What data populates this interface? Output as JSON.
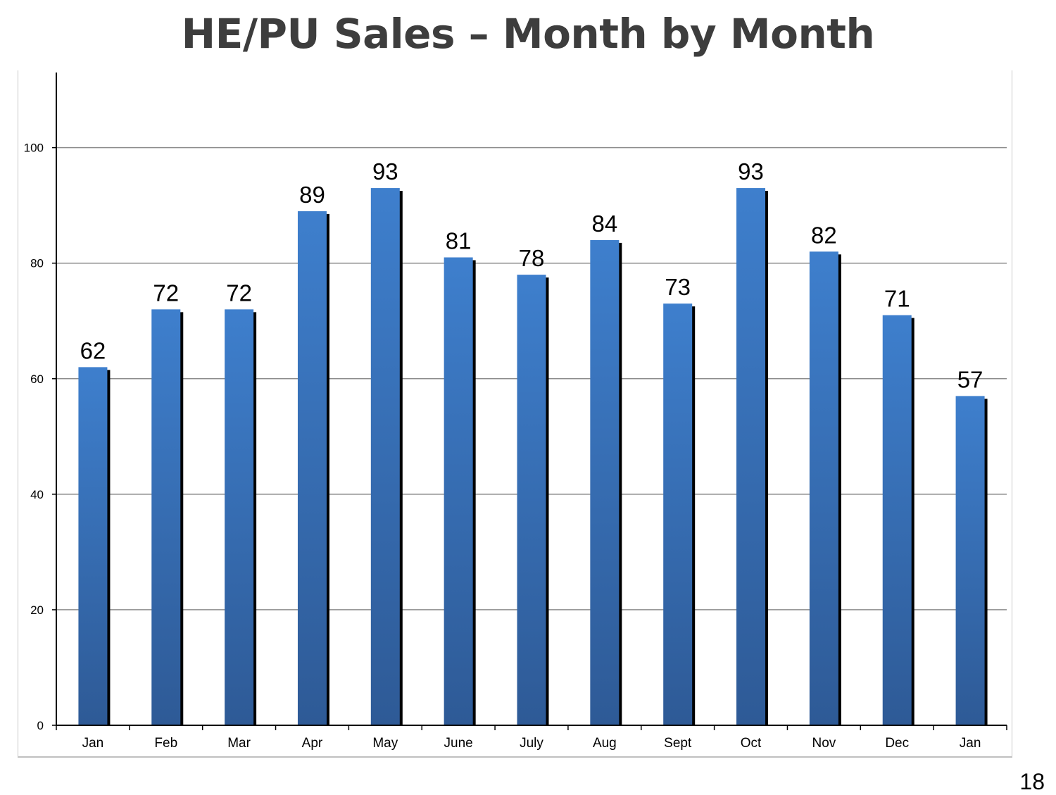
{
  "slide": {
    "title": "HE/PU Sales – Month by Month",
    "page_number": "18"
  },
  "chart_data": {
    "type": "bar",
    "title": "HE/PU Sales – Month by Month",
    "xlabel": "",
    "ylabel": "",
    "categories": [
      "Jan",
      "Feb",
      "Mar",
      "Apr",
      "May",
      "June",
      "July",
      "Aug",
      "Sept",
      "Oct",
      "Nov",
      "Dec",
      "Jan"
    ],
    "values": [
      62,
      72,
      72,
      89,
      93,
      81,
      78,
      84,
      73,
      93,
      82,
      71,
      57
    ],
    "ylim": [
      0,
      113
    ],
    "yticks": [
      0,
      20,
      40,
      60,
      80,
      100
    ],
    "grid": true,
    "legend": "none",
    "colors": {
      "bar_top": "#3e7fcd",
      "bar_bottom": "#2e5a96",
      "bar_shadow": "#000000",
      "gridline": "#8c8c8c",
      "axis": "#000000"
    }
  }
}
